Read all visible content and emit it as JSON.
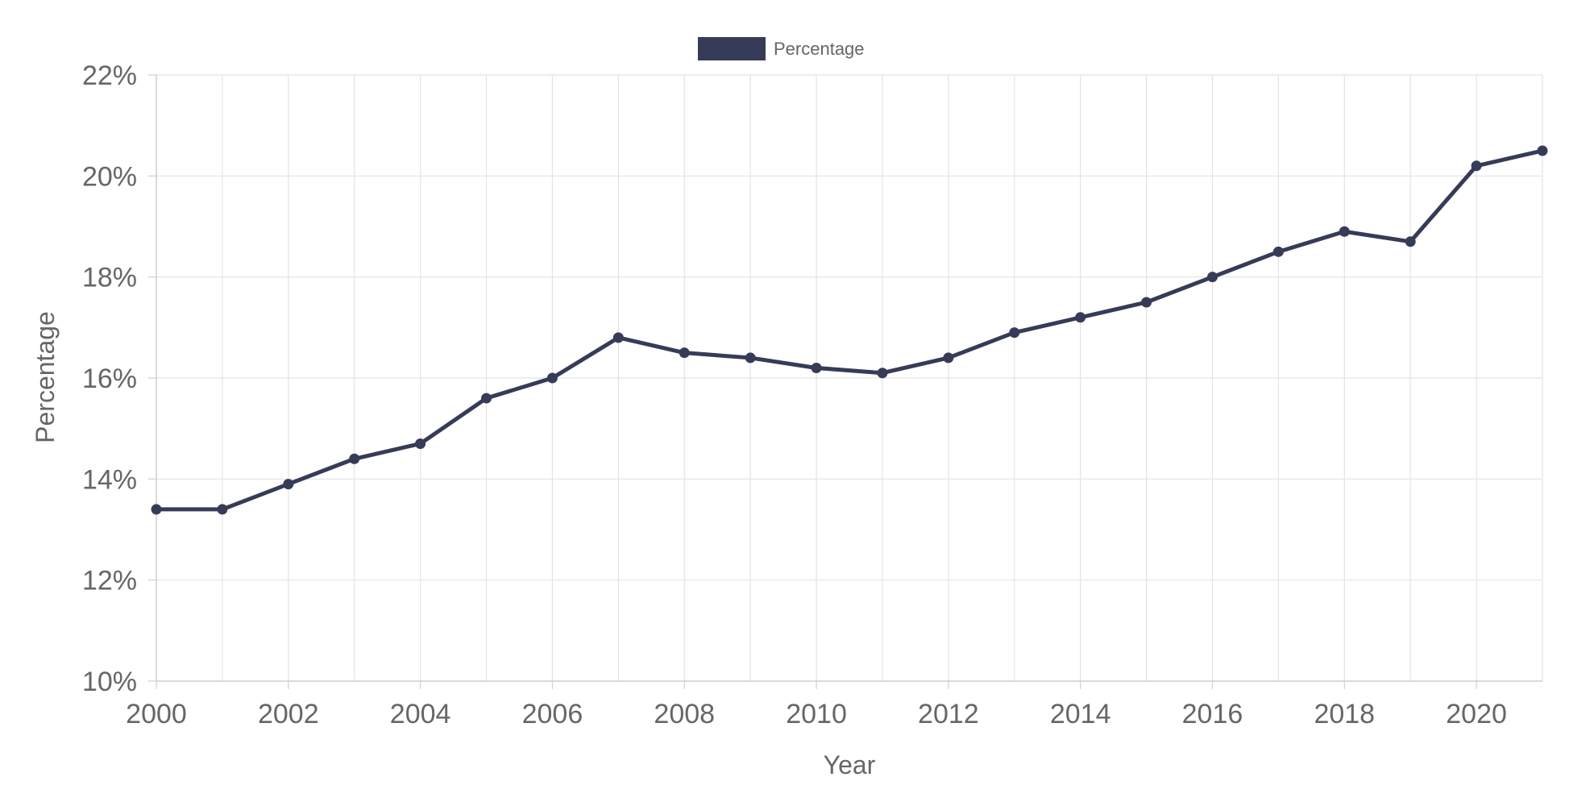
{
  "chart_data": {
    "type": "line",
    "xlabel": "Year",
    "ylabel": "Percentage",
    "x": [
      2000,
      2001,
      2002,
      2003,
      2004,
      2005,
      2006,
      2007,
      2008,
      2009,
      2010,
      2011,
      2012,
      2013,
      2014,
      2015,
      2016,
      2017,
      2018,
      2019,
      2020,
      2021
    ],
    "series": [
      {
        "name": "Percentage",
        "values": [
          13.4,
          13.4,
          13.9,
          14.4,
          14.7,
          15.6,
          16.0,
          16.8,
          16.5,
          16.4,
          16.2,
          16.1,
          16.4,
          16.9,
          17.2,
          17.5,
          18.0,
          18.5,
          18.9,
          18.7,
          20.2,
          20.5
        ],
        "color": "#363b57"
      }
    ],
    "xlim": [
      2000,
      2021
    ],
    "ylim": [
      10,
      22
    ],
    "x_ticks": [
      "2000",
      "2002",
      "2004",
      "2006",
      "2008",
      "2010",
      "2012",
      "2014",
      "2016",
      "2018",
      "2020"
    ],
    "y_ticks": [
      "10%",
      "12%",
      "14%",
      "16%",
      "18%",
      "20%",
      "22%"
    ],
    "grid": true,
    "legend": {
      "position": "top",
      "entries": [
        "Percentage"
      ]
    }
  },
  "colors": {
    "series": "#363b57",
    "grid": "#e3e3e3",
    "axis": "#cfcfcf",
    "text": "#666666"
  }
}
